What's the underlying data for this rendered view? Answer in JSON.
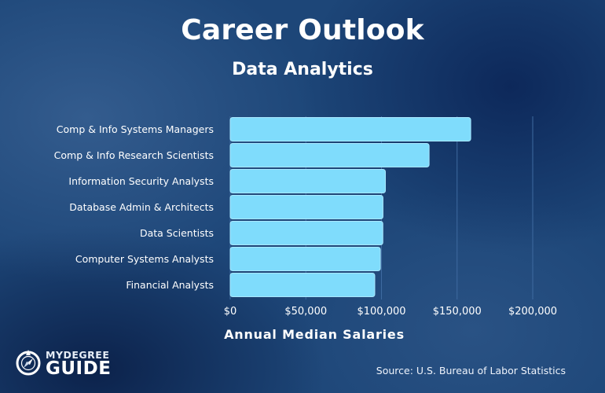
{
  "header": {
    "title": "Career Outlook",
    "subtitle": "Data Analytics"
  },
  "footer": {
    "source": "Source: U.S. Bureau of Labor Statistics"
  },
  "logo": {
    "line1": "MYDEGREE",
    "line2": "GUIDE",
    "icon": "compass-icon"
  },
  "colors": {
    "bar": "#7fdcfc",
    "bar_stroke": "#a9e8ff",
    "text": "#ffffff",
    "gridline": "#3e6aa0"
  },
  "chart_data": {
    "type": "bar",
    "orientation": "horizontal",
    "categories": [
      "Comp & Info Systems Managers",
      "Comp & Info Research Scientists",
      "Information Security Analysts",
      "Database Admin & Architects",
      "Data Scientists",
      "Computer Systems Analysts",
      "Financial Analysts"
    ],
    "values": [
      159010,
      131490,
      102600,
      101000,
      100910,
      99270,
      95570
    ],
    "xlim": [
      0,
      200000
    ],
    "ticks": [
      0,
      50000,
      100000,
      150000,
      200000
    ],
    "tick_labels": [
      "$0",
      "$50,000",
      "$100,000",
      "$150,000",
      "$200,000"
    ],
    "xlabel": "Annual Median Salaries",
    "ylabel": "",
    "grid": true,
    "legend": false
  }
}
